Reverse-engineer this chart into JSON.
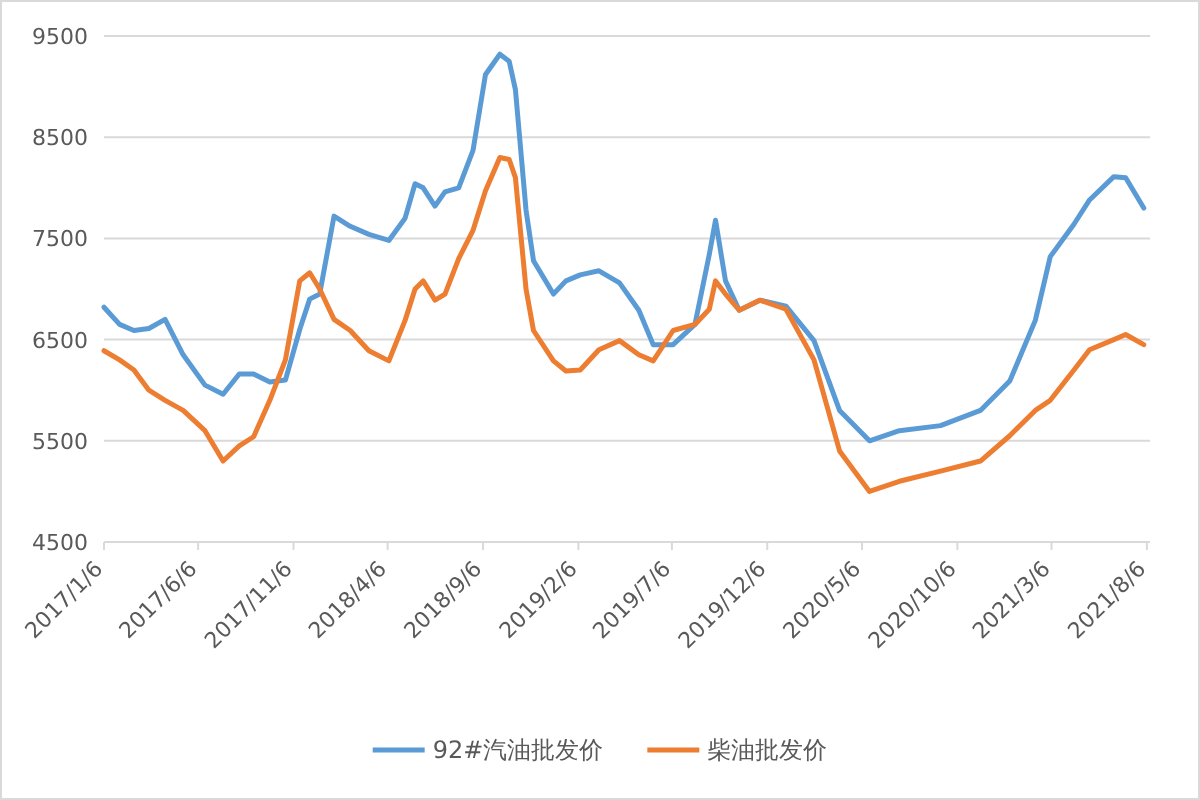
{
  "chart_data": {
    "type": "line",
    "x": [
      "2017-01-06",
      "2017-01-31",
      "2017-02-23",
      "2017-03-19",
      "2017-04-14",
      "2017-05-13",
      "2017-06-17",
      "2017-07-16",
      "2017-08-11",
      "2017-09-03",
      "2017-09-29",
      "2017-10-24",
      "2017-11-16",
      "2017-12-02",
      "2017-12-18",
      "2018-01-10",
      "2018-02-05",
      "2018-03-07",
      "2018-04-08",
      "2018-05-04",
      "2018-05-20",
      "2018-06-02",
      "2018-06-21",
      "2018-07-07",
      "2018-07-29",
      "2018-08-21",
      "2018-09-10",
      "2018-10-03",
      "2018-10-18",
      "2018-10-28",
      "2018-11-14",
      "2018-11-26",
      "2018-12-28",
      "2019-01-17",
      "2019-02-09",
      "2019-03-11",
      "2019-04-13",
      "2019-05-14",
      "2019-06-06",
      "2019-07-08",
      "2019-08-12",
      "2019-09-04",
      "2019-09-14",
      "2019-09-30",
      "2019-10-22",
      "2019-11-24",
      "2020-01-05",
      "2020-02-19",
      "2020-03-31",
      "2020-05-18",
      "2020-07-05",
      "2020-09-09",
      "2020-11-12",
      "2020-12-29",
      "2021-02-08",
      "2021-03-04",
      "2021-04-11",
      "2021-05-06",
      "2021-06-14",
      "2021-07-03",
      "2021-08-01"
    ],
    "series": [
      {
        "name": "92#汽油批发价",
        "color": "#5b9bd5",
        "values": [
          6820,
          6650,
          6590,
          6610,
          6700,
          6350,
          6050,
          5960,
          6160,
          6160,
          6080,
          6100,
          6600,
          6900,
          6950,
          7720,
          7620,
          7540,
          7480,
          7700,
          8040,
          8000,
          7820,
          7960,
          8000,
          8370,
          9120,
          9320,
          9250,
          8970,
          7780,
          7280,
          6950,
          7080,
          7140,
          7180,
          7060,
          6790,
          6450,
          6450,
          6650,
          7340,
          7680,
          7080,
          6790,
          6890,
          6830,
          6490,
          5800,
          5500,
          5600,
          5650,
          5800,
          6090,
          6690,
          7320,
          7640,
          7880,
          8110,
          8100,
          7800
        ]
      },
      {
        "name": "柴油批发价",
        "color": "#ed7d31",
        "values": [
          6390,
          6300,
          6200,
          6000,
          5900,
          5800,
          5600,
          5300,
          5450,
          5540,
          5900,
          6300,
          7080,
          7160,
          7000,
          6700,
          6590,
          6390,
          6290,
          6690,
          7000,
          7080,
          6890,
          6950,
          7300,
          7580,
          7970,
          8300,
          8280,
          8100,
          7000,
          6590,
          6290,
          6190,
          6200,
          6400,
          6490,
          6350,
          6290,
          6590,
          6650,
          6800,
          7080,
          6950,
          6790,
          6890,
          6800,
          6300,
          5400,
          5000,
          5100,
          5200,
          5300,
          5550,
          5800,
          5900,
          6200,
          6400,
          6500,
          6550,
          6450
        ]
      }
    ],
    "xlim": [
      "2017-01-06",
      "2021-08-11"
    ],
    "xticks": [
      {
        "value": "2017-01-06",
        "label": "2017/1/6"
      },
      {
        "value": "2017-06-06",
        "label": "2017/6/6"
      },
      {
        "value": "2017-11-06",
        "label": "2017/11/6"
      },
      {
        "value": "2018-04-06",
        "label": "2018/4/6"
      },
      {
        "value": "2018-09-06",
        "label": "2018/9/6"
      },
      {
        "value": "2019-02-06",
        "label": "2019/2/6"
      },
      {
        "value": "2019-07-06",
        "label": "2019/7/6"
      },
      {
        "value": "2019-12-06",
        "label": "2019/12/6"
      },
      {
        "value": "2020-05-06",
        "label": "2020/5/6"
      },
      {
        "value": "2020-10-06",
        "label": "2020/10/6"
      },
      {
        "value": "2021-03-06",
        "label": "2021/3/6"
      },
      {
        "value": "2021-08-06",
        "label": "2021/8/6"
      }
    ],
    "ylim": [
      4500,
      9500
    ],
    "yticks": [
      4500,
      5500,
      6500,
      7500,
      8500,
      9500
    ],
    "grid": "y",
    "legend": "bottom",
    "marker": "none",
    "line_style": "solid"
  }
}
